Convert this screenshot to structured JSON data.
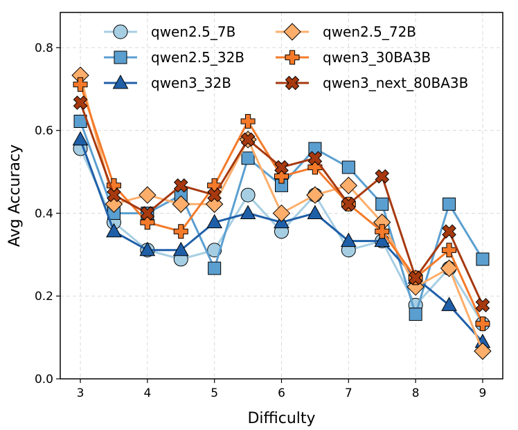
{
  "chart_data": {
    "type": "line",
    "xlabel": "Difficulty",
    "ylabel": "Avg Accuracy",
    "xlim": [
      2.7,
      9.3
    ],
    "ylim": [
      0.0,
      0.885
    ],
    "xticks": [
      3,
      4,
      5,
      6,
      7,
      8,
      9
    ],
    "yticks": [
      0.0,
      0.2,
      0.4,
      0.6,
      0.8
    ],
    "ytick_labels": [
      "0.0",
      "0.2",
      "0.4",
      "0.6",
      "0.8"
    ],
    "grid": true,
    "legend_position": "top",
    "x": [
      3,
      3.5,
      4,
      4.5,
      5,
      5.5,
      6,
      6.5,
      7,
      7.5,
      8,
      8.5,
      9
    ],
    "series": [
      {
        "name": "qwen2.5_7B",
        "color": "#a6cee3",
        "marker": "circle",
        "values": [
          0.556,
          0.378,
          0.311,
          0.289,
          0.311,
          0.444,
          0.356,
          0.444,
          0.311,
          0.333,
          0.178,
          0.267,
          0.133
        ]
      },
      {
        "name": "qwen2.5_32B",
        "color": "#5b9fd0",
        "marker": "square",
        "values": [
          0.622,
          0.4,
          0.4,
          0.444,
          0.267,
          0.533,
          0.467,
          0.556,
          0.511,
          0.422,
          0.156,
          0.422,
          0.289
        ]
      },
      {
        "name": "qwen3_32B",
        "color": "#1f5fa8",
        "marker": "triangle",
        "values": [
          0.578,
          0.356,
          0.311,
          0.311,
          0.378,
          0.4,
          0.378,
          0.4,
          0.333,
          0.333,
          0.244,
          0.178,
          0.089
        ]
      },
      {
        "name": "qwen2.5_72B",
        "color": "#fdae6b",
        "marker": "diamond",
        "values": [
          0.733,
          0.422,
          0.444,
          0.422,
          0.422,
          0.578,
          0.4,
          0.444,
          0.467,
          0.378,
          0.222,
          0.267,
          0.067
        ]
      },
      {
        "name": "qwen3_30BA3B",
        "color": "#f47a2a",
        "marker": "plus",
        "values": [
          0.711,
          0.467,
          0.378,
          0.356,
          0.467,
          0.622,
          0.489,
          0.511,
          0.422,
          0.356,
          0.244,
          0.311,
          0.133
        ]
      },
      {
        "name": "qwen3_next_80BA3B",
        "color": "#a6390f",
        "marker": "x",
        "values": [
          0.667,
          0.444,
          0.4,
          0.467,
          0.444,
          0.578,
          0.511,
          0.533,
          0.422,
          0.489,
          0.244,
          0.356,
          0.178
        ]
      }
    ]
  }
}
